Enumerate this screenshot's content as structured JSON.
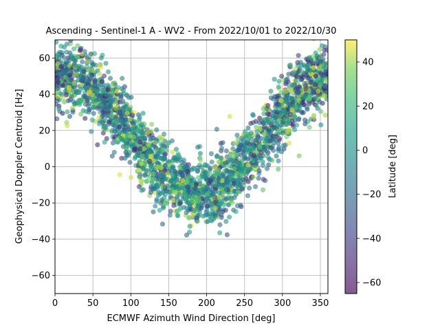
{
  "chart_data": {
    "type": "scatter",
    "title": "Ascending - Sentinel-1 A - WV2 - From 2022/10/01 to 2022/10/30",
    "xlabel": "ECMWF Azimuth Wind Direction [deg]",
    "ylabel": "Geophysical Doppler Centroid [Hz]",
    "xlim": [
      0,
      360
    ],
    "ylim": [
      -70,
      70
    ],
    "x_ticks": [
      "0",
      "50",
      "100",
      "150",
      "200",
      "250",
      "300",
      "350"
    ],
    "y_ticks": [
      "60",
      "40",
      "20",
      "0",
      "−20",
      "−40",
      "−60"
    ],
    "grid": true,
    "colorbar": {
      "label": "Latitude [deg]",
      "range": [
        -65,
        50
      ],
      "ticks": [
        "40",
        "20",
        "0",
        "−20",
        "−40",
        "−60"
      ],
      "colormap": "viridis",
      "alpha": 0.6
    },
    "pattern": {
      "description_values": "Doppler follows a V/cosine shape with wind direction",
      "center_hz": 18,
      "amplitude_hz": 32,
      "min_at_deg": 190,
      "spread_hz": 9
    },
    "sample_points": [
      [
        5,
        62,
        5
      ],
      [
        15,
        58,
        -10
      ],
      [
        25,
        65,
        20
      ],
      [
        35,
        55,
        0
      ],
      [
        45,
        50,
        -20
      ],
      [
        55,
        42,
        10
      ],
      [
        65,
        35,
        -30
      ],
      [
        75,
        28,
        30
      ],
      [
        85,
        22,
        -40
      ],
      [
        95,
        15,
        20
      ],
      [
        105,
        10,
        -50
      ],
      [
        115,
        6,
        35
      ],
      [
        125,
        3,
        -45
      ],
      [
        135,
        0,
        40
      ],
      [
        145,
        -2,
        -55
      ],
      [
        155,
        -5,
        25
      ],
      [
        165,
        -3,
        -35
      ],
      [
        175,
        -8,
        30
      ],
      [
        185,
        -12,
        -40
      ],
      [
        195,
        -15,
        10
      ],
      [
        205,
        -8,
        -50
      ],
      [
        215,
        -2,
        35
      ],
      [
        225,
        2,
        -30
      ],
      [
        235,
        6,
        40
      ],
      [
        245,
        12,
        -35
      ],
      [
        255,
        18,
        20
      ],
      [
        265,
        25,
        -45
      ],
      [
        275,
        32,
        30
      ],
      [
        285,
        38,
        -20
      ],
      [
        295,
        44,
        10
      ],
      [
        305,
        48,
        -10
      ],
      [
        315,
        52,
        25
      ],
      [
        325,
        56,
        0
      ],
      [
        335,
        60,
        15
      ],
      [
        345,
        58,
        -5
      ],
      [
        355,
        55,
        20
      ],
      [
        138,
        -24,
        10
      ],
      [
        193,
        -23,
        -30
      ],
      [
        322,
        6,
        35
      ],
      [
        5,
        32,
        5
      ]
    ]
  }
}
